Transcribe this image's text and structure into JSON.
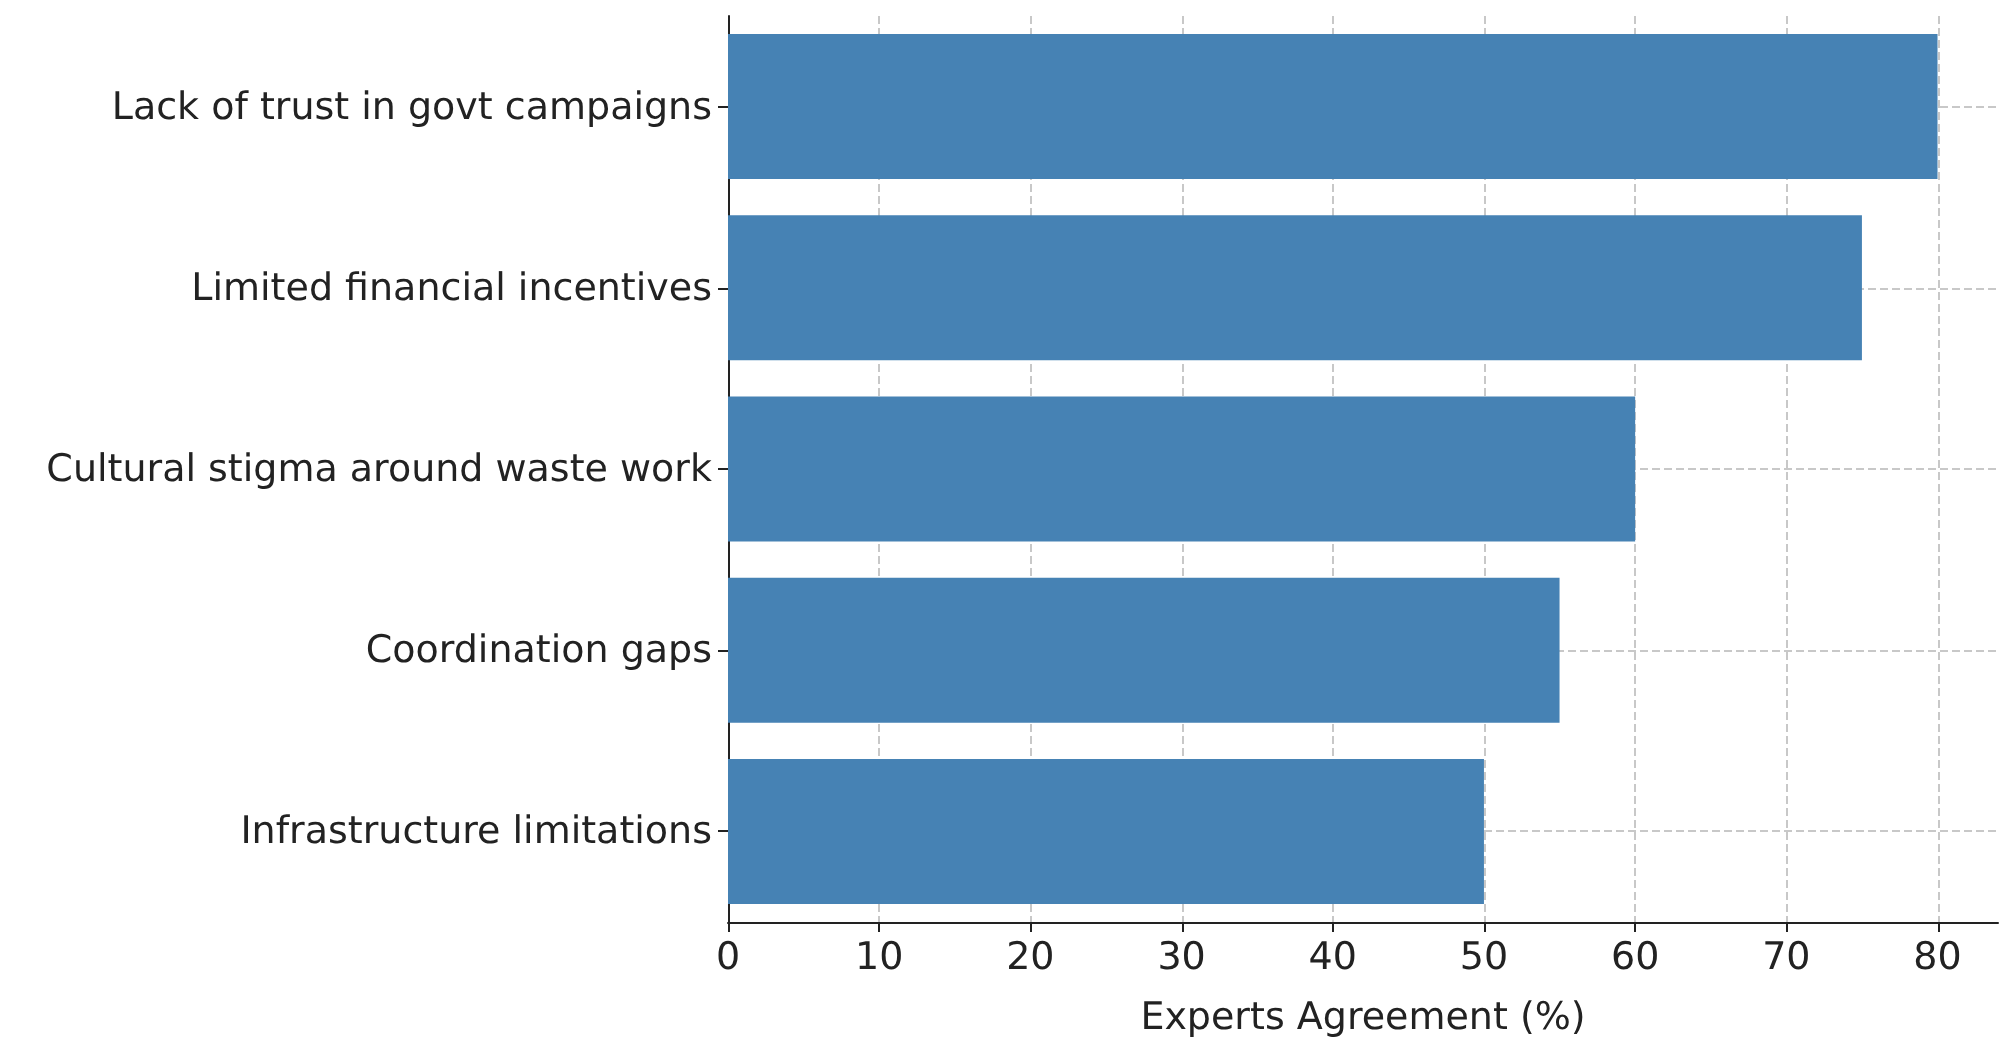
{
  "chart_data": {
    "type": "bar",
    "orientation": "horizontal",
    "xlabel": "Experts Agreement (%)",
    "categories": [
      "Lack of trust in govt campaigns",
      "Limited financial incentives",
      "Cultural stigma around waste work",
      "Coordination gaps",
      "Infrastructure limitations"
    ],
    "values": [
      80,
      75,
      60,
      55,
      50
    ],
    "color": "#4682b4",
    "xlim": [
      0,
      84
    ],
    "xticks": [
      0,
      10,
      20,
      30,
      40,
      50,
      60,
      70,
      80
    ],
    "grid": true
  }
}
